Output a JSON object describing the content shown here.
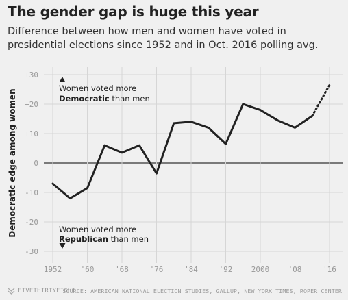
{
  "header": {
    "title": "The gender gap is huge this year",
    "subtitle": "Difference between how men and women have voted in presidential elections since 1952 and in Oct. 2016 polling avg."
  },
  "footer": {
    "brand": "FIVETHIRTYEIGHT",
    "source": "SOURCE: AMERICAN NATIONAL ELECTION STUDIES, GALLUP, NEW YORK TIMES, ROPER CENTER"
  },
  "colors": {
    "background": "#f0f0f0",
    "line": "#222222",
    "grid": "#d6d6d6",
    "zero_line": "#333333",
    "tick_text": "#999999"
  },
  "chart_data": {
    "type": "line",
    "title": "The gender gap is huge this year",
    "xlabel": "",
    "ylabel": "Democratic edge among women",
    "xlim": [
      1950,
      2018
    ],
    "ylim": [
      -32,
      30
    ],
    "y_ticks": [
      30,
      20,
      10,
      0,
      -10,
      -20,
      -30
    ],
    "y_tick_labels": [
      "+30",
      "+20",
      "+10",
      "0",
      "-10",
      "-20",
      "-30"
    ],
    "x_ticks": [
      1952,
      1960,
      1968,
      1976,
      1984,
      1992,
      2000,
      2008,
      2016
    ],
    "x_tick_labels": [
      "1952",
      "'60",
      "'68",
      "'76",
      "'84",
      "'92",
      "2000",
      "'08",
      "'16"
    ],
    "grid": true,
    "series": [
      {
        "style": "solid",
        "x": [
          1952,
          1956,
          1960,
          1964,
          1968,
          1972,
          1976,
          1980,
          1984,
          1988,
          1992,
          1996,
          2000,
          2004,
          2008,
          2012
        ],
        "y": [
          -7,
          -12,
          -8.5,
          6,
          3.5,
          6,
          -3.5,
          13.5,
          14,
          12,
          6.5,
          20,
          18,
          14.5,
          12,
          16
        ]
      },
      {
        "style": "dotted",
        "x": [
          2012,
          2016
        ],
        "y": [
          16,
          26.5
        ]
      }
    ],
    "annotations": {
      "top": {
        "line1": "Women voted more",
        "bold": "Democratic",
        "rest": " than men",
        "arrow": "up"
      },
      "bottom": {
        "line1": "Women voted more",
        "bold": "Republican",
        "rest": " than men",
        "arrow": "down"
      }
    }
  }
}
